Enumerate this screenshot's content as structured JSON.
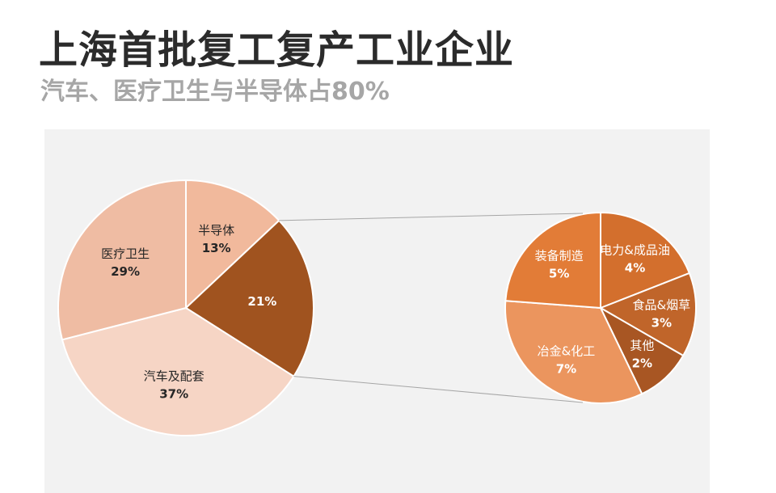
{
  "header": {
    "title": "上海首批复工复产工业企业",
    "subtitle": "汽车、医疗卫生与半导体占80%"
  },
  "chart_data": [
    {
      "type": "pie",
      "slices": [
        {
          "label": "半导体",
          "value": 13,
          "display": "13%",
          "color": "#f1b99c"
        },
        {
          "label": "",
          "value": 21,
          "display": "21%",
          "color": "#a0531f"
        },
        {
          "label": "汽车及配套",
          "value": 37,
          "display": "37%",
          "color": "#f6d5c5"
        },
        {
          "label": "医疗卫生",
          "value": 29,
          "display": "29%",
          "color": "#efbca3"
        }
      ]
    },
    {
      "type": "pie",
      "slices": [
        {
          "label": "电力&成品油",
          "value": 4,
          "display": "4%",
          "color": "#d36f2d"
        },
        {
          "label": "食品&烟草",
          "value": 3,
          "display": "3%",
          "color": "#c0652a"
        },
        {
          "label": "其他",
          "value": 2,
          "display": "2%",
          "color": "#a85623"
        },
        {
          "label": "冶金&化工",
          "value": 7,
          "display": "7%",
          "color": "#eb955e"
        },
        {
          "label": "装备制造",
          "value": 5,
          "display": "5%",
          "color": "#e27c37"
        }
      ]
    }
  ]
}
